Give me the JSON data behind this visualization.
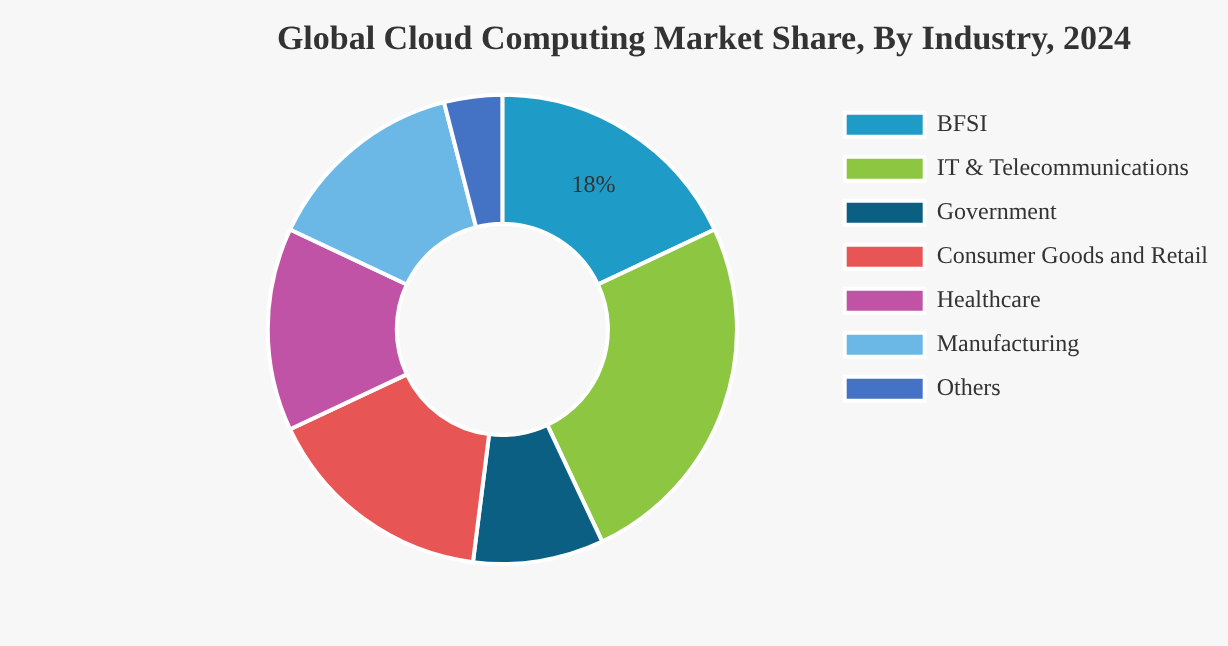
{
  "chart_data": {
    "type": "donut",
    "title": "Global Cloud Computing Market Share, By Industry, 2024",
    "categories": [
      "BFSI",
      "IT & Telecommunications",
      "Government",
      "Consumer Goods and Retail",
      "Healthcare",
      "Manufacturing",
      "Others"
    ],
    "values": [
      18,
      25,
      9,
      16,
      14,
      14,
      4
    ],
    "colors": [
      "#1f9bc7",
      "#8dc641",
      "#0b5f82",
      "#e85555",
      "#c153a6",
      "#6bb8e6",
      "#4472c4"
    ],
    "value_labels": [
      "18%",
      null,
      null,
      null,
      null,
      null,
      null
    ],
    "legend": "right"
  }
}
